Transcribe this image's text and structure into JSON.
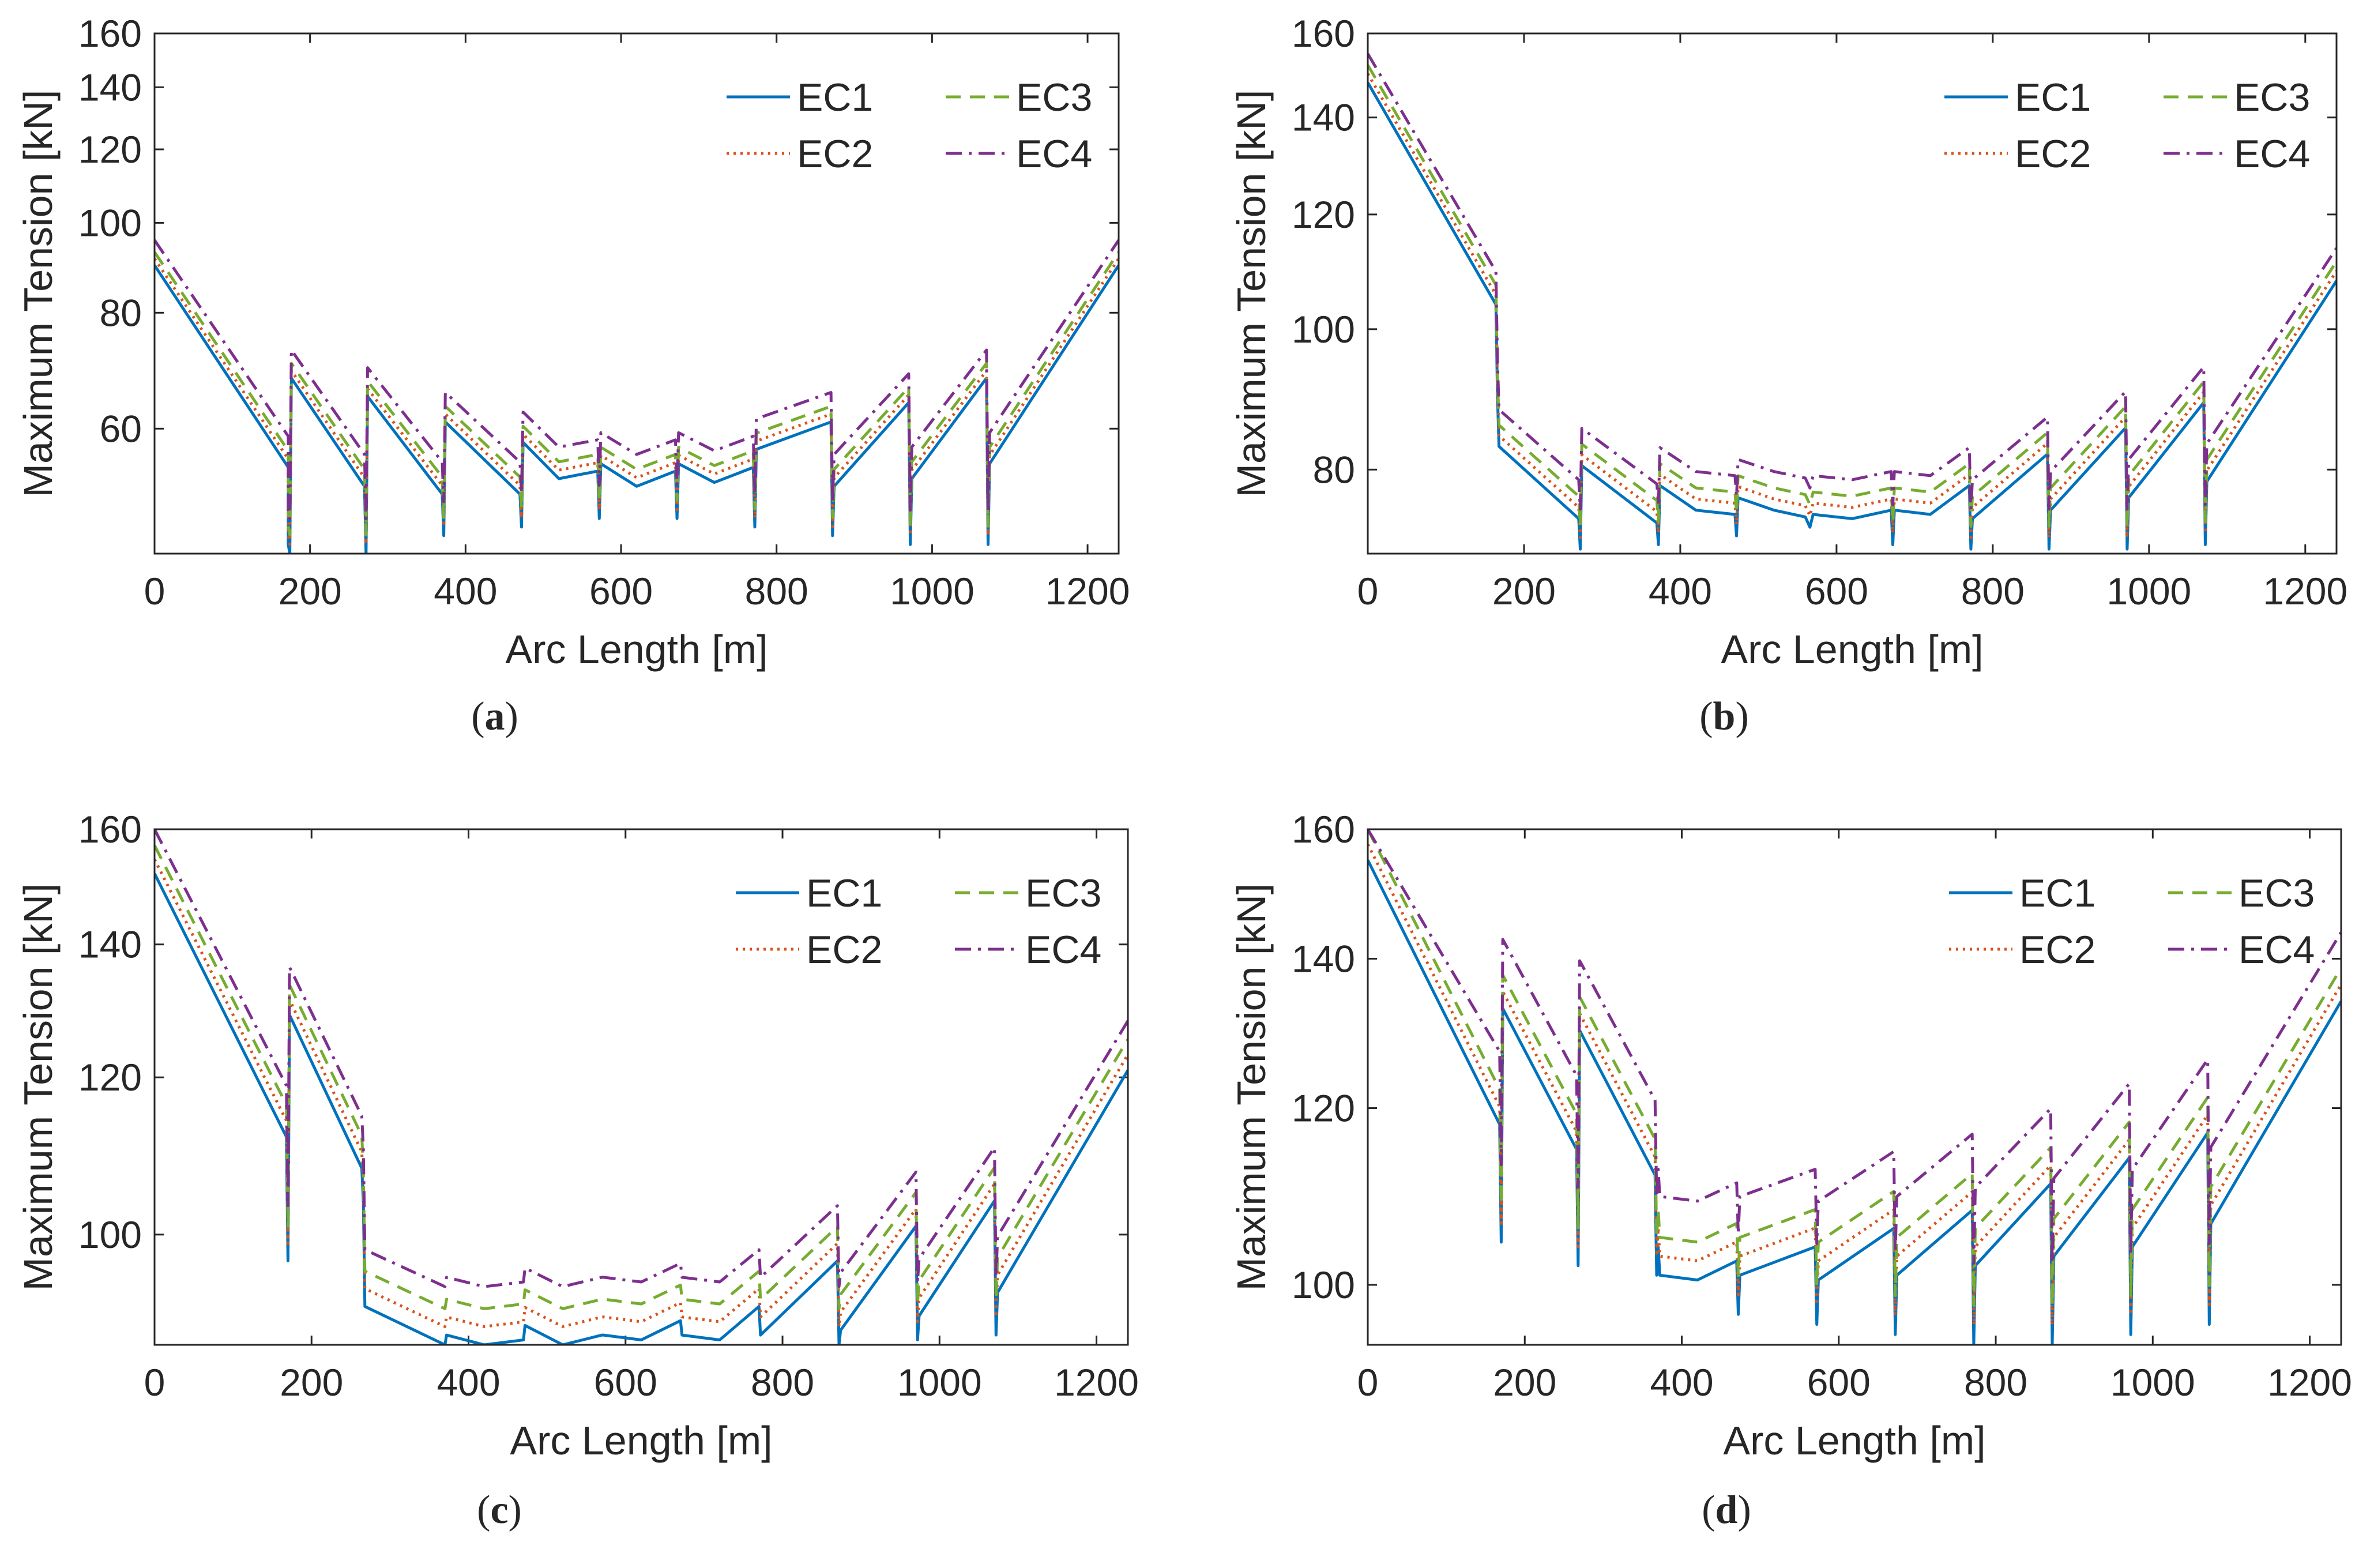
{
  "colors": {
    "EC1": "#0072BD",
    "EC2": "#D95319",
    "EC3": "#77AC30",
    "EC4": "#7E2F8E",
    "axis": "#262626",
    "background": "#ffffff"
  },
  "chart_data": [
    {
      "panel": "a",
      "caption": {
        "open": "(",
        "letter": "a",
        "close": ")"
      },
      "type": "line",
      "xlabel": "Arc Length [m]",
      "ylabel": "Maximum Tension [kN]",
      "xlim": [
        0,
        1240
      ],
      "ylim": [
        44,
        160
      ],
      "yscale": "log",
      "xticks": [
        0,
        200,
        400,
        600,
        800,
        1000,
        1200
      ],
      "yticks": [
        60,
        80,
        100,
        120,
        140,
        160
      ],
      "legend": {
        "position": "top-right",
        "entries": [
          "EC1",
          "EC2",
          "EC3",
          "EC4"
        ]
      },
      "series": [
        {
          "name": "EC1",
          "offset": 0,
          "scale": 1.0
        },
        {
          "name": "EC2",
          "offset": 0.6,
          "scale": 1.01
        },
        {
          "name": "EC3",
          "offset": 1.2,
          "scale": 1.02
        },
        {
          "name": "EC4",
          "offset": 2.2,
          "scale": 1.04
        }
      ],
      "base_points": [
        [
          0,
          90
        ],
        [
          172,
          54.5
        ],
        [
          172,
          45
        ],
        [
          174,
          44
        ],
        [
          176,
          68
        ],
        [
          270,
          52
        ],
        [
          272,
          44
        ],
        [
          274,
          65
        ],
        [
          370,
          51
        ],
        [
          372,
          46
        ],
        [
          374,
          61
        ],
        [
          470,
          51
        ],
        [
          472,
          47
        ],
        [
          474,
          58
        ],
        [
          520,
          53
        ],
        [
          570,
          54
        ],
        [
          572,
          48
        ],
        [
          574,
          55
        ],
        [
          620,
          52
        ],
        [
          670,
          54
        ],
        [
          672,
          48
        ],
        [
          674,
          55
        ],
        [
          720,
          52.5
        ],
        [
          770,
          54.5
        ],
        [
          772,
          47
        ],
        [
          774,
          57
        ],
        [
          870,
          61
        ],
        [
          872,
          46
        ],
        [
          874,
          52
        ],
        [
          970,
          64
        ],
        [
          972,
          45
        ],
        [
          974,
          53
        ],
        [
          1070,
          68
        ],
        [
          1072,
          45
        ],
        [
          1074,
          55
        ],
        [
          1240,
          90
        ]
      ]
    },
    {
      "panel": "b",
      "caption": {
        "open": "(",
        "letter": "b",
        "close": ")"
      },
      "type": "line",
      "xlabel": "Arc Length [m]",
      "ylabel": "Maximum Tension [kN]",
      "xlim": [
        0,
        1240
      ],
      "ylim": [
        70,
        160
      ],
      "yscale": "log",
      "xticks": [
        0,
        200,
        400,
        600,
        800,
        1000,
        1200
      ],
      "yticks": [
        80,
        100,
        120,
        140,
        160
      ],
      "legend": {
        "position": "top-right",
        "entries": [
          "EC1",
          "EC2",
          "EC3",
          "EC4"
        ]
      },
      "series": [
        {
          "name": "EC1",
          "offset": 0,
          "scale": 1.0
        },
        {
          "name": "EC2",
          "offset": 0.6,
          "scale": 1.01
        },
        {
          "name": "EC3",
          "offset": 1.2,
          "scale": 1.02
        },
        {
          "name": "EC4",
          "offset": 2.5,
          "scale": 1.03
        }
      ],
      "base_points": [
        [
          0,
          148
        ],
        [
          164,
          104
        ],
        [
          166,
          90
        ],
        [
          168,
          83
        ],
        [
          270,
          74
        ],
        [
          272,
          70.5
        ],
        [
          274,
          80.5
        ],
        [
          370,
          73.5
        ],
        [
          372,
          71
        ],
        [
          374,
          78
        ],
        [
          420,
          75
        ],
        [
          470,
          74.5
        ],
        [
          472,
          72
        ],
        [
          474,
          76.5
        ],
        [
          520,
          75
        ],
        [
          560,
          74.2
        ],
        [
          566,
          73
        ],
        [
          570,
          74.5
        ],
        [
          620,
          74
        ],
        [
          670,
          75
        ],
        [
          672,
          71
        ],
        [
          674,
          75
        ],
        [
          720,
          74.5
        ],
        [
          770,
          78
        ],
        [
          772,
          70.5
        ],
        [
          774,
          74
        ],
        [
          870,
          82
        ],
        [
          872,
          70.5
        ],
        [
          874,
          75
        ],
        [
          970,
          85.5
        ],
        [
          972,
          70.5
        ],
        [
          974,
          76.5
        ],
        [
          1070,
          89
        ],
        [
          1072,
          71
        ],
        [
          1074,
          78.5
        ],
        [
          1240,
          108
        ]
      ]
    },
    {
      "panel": "c",
      "caption": {
        "open": "(",
        "letter": "c",
        "close": ")"
      },
      "type": "line",
      "xlabel": "Arc Length [m]",
      "ylabel": "Maximum Tension [kN]",
      "xlim": [
        0,
        1240
      ],
      "ylim": [
        88,
        160
      ],
      "yscale": "log",
      "xticks": [
        0,
        200,
        400,
        600,
        800,
        1000,
        1200
      ],
      "yticks": [
        100,
        120,
        140,
        160
      ],
      "legend": {
        "position": "top-right",
        "entries": [
          "EC1",
          "EC2",
          "EC3",
          "EC4"
        ]
      },
      "series": [
        {
          "name": "EC1",
          "offset": 0,
          "scale": 1.0
        },
        {
          "name": "EC2",
          "offset": 1.0,
          "scale": 1.01
        },
        {
          "name": "EC3",
          "offset": 2.0,
          "scale": 1.02
        },
        {
          "name": "EC4",
          "offset": 3.5,
          "scale": 1.03
        }
      ],
      "base_points": [
        [
          0,
          152
        ],
        [
          168,
          112
        ],
        [
          170,
          97
        ],
        [
          172,
          129
        ],
        [
          264,
          108
        ],
        [
          266,
          104
        ],
        [
          268,
          92
        ],
        [
          370,
          88
        ],
        [
          372,
          89
        ],
        [
          420,
          88
        ],
        [
          470,
          88.5
        ],
        [
          472,
          90
        ],
        [
          520,
          88
        ],
        [
          570,
          89
        ],
        [
          572,
          89
        ],
        [
          620,
          88.5
        ],
        [
          670,
          90.5
        ],
        [
          672,
          89
        ],
        [
          720,
          88.5
        ],
        [
          770,
          92
        ],
        [
          772,
          89
        ],
        [
          870,
          97
        ],
        [
          872,
          88
        ],
        [
          874,
          89.5
        ],
        [
          970,
          101
        ],
        [
          972,
          88.5
        ],
        [
          974,
          91
        ],
        [
          1070,
          104
        ],
        [
          1072,
          89
        ],
        [
          1074,
          93.5
        ],
        [
          1240,
          121
        ]
      ]
    },
    {
      "panel": "d",
      "caption": {
        "open": "(",
        "letter": "d",
        "close": ")"
      },
      "type": "line",
      "xlabel": "Arc Length [m]",
      "ylabel": "Maximum Tension [kN]",
      "xlim": [
        0,
        1240
      ],
      "ylim": [
        94,
        160
      ],
      "yscale": "log",
      "xticks": [
        0,
        200,
        400,
        600,
        800,
        1000,
        1200
      ],
      "yticks": [
        100,
        120,
        140,
        160
      ],
      "legend": {
        "position": "top-right",
        "entries": [
          "EC1",
          "EC2",
          "EC3",
          "EC4"
        ]
      },
      "series": [
        {
          "name": "EC1",
          "offset": 0,
          "scale": 1.0
        },
        {
          "name": "EC2",
          "offset": 1.0,
          "scale": 1.01
        },
        {
          "name": "EC3",
          "offset": 2.0,
          "scale": 1.02
        },
        {
          "name": "EC4",
          "offset": 4.5,
          "scale": 1.04
        }
      ],
      "base_points": [
        [
          0,
          155
        ],
        [
          168,
          118
        ],
        [
          170,
          104.5
        ],
        [
          172,
          133
        ],
        [
          266,
          115
        ],
        [
          268,
          102
        ],
        [
          270,
          130
        ],
        [
          366,
          112
        ],
        [
          368,
          101
        ],
        [
          370,
          104
        ],
        [
          372,
          101
        ],
        [
          420,
          100.5
        ],
        [
          470,
          102.5
        ],
        [
          472,
          97
        ],
        [
          474,
          101
        ],
        [
          570,
          104
        ],
        [
          572,
          96
        ],
        [
          574,
          100.5
        ],
        [
          670,
          106
        ],
        [
          672,
          95
        ],
        [
          674,
          101
        ],
        [
          770,
          108
        ],
        [
          772,
          94
        ],
        [
          774,
          102
        ],
        [
          870,
          111
        ],
        [
          872,
          94
        ],
        [
          874,
          103
        ],
        [
          970,
          114
        ],
        [
          972,
          95
        ],
        [
          974,
          104
        ],
        [
          1070,
          117
        ],
        [
          1072,
          96
        ],
        [
          1074,
          106.5
        ],
        [
          1240,
          134
        ]
      ]
    }
  ]
}
